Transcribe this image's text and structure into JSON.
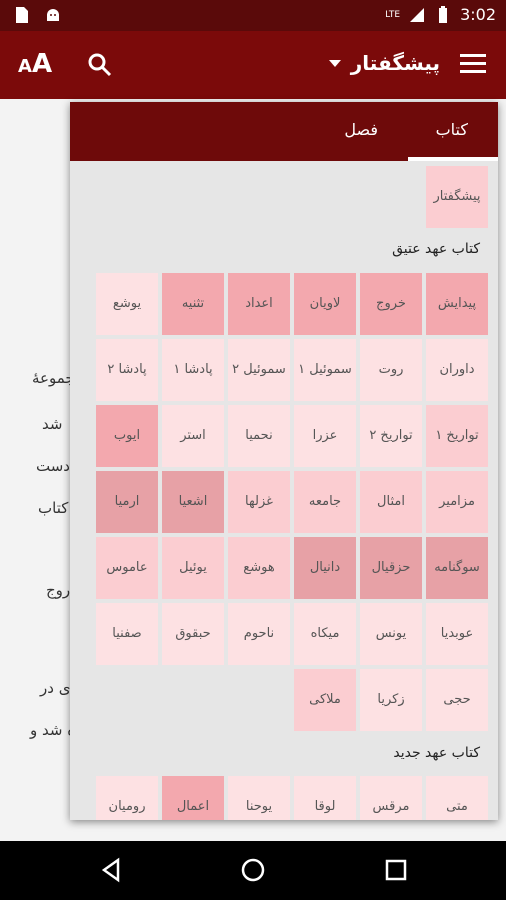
{
  "status": {
    "signal": "LTE",
    "time": "3:02"
  },
  "appbar": {
    "font_button": "A",
    "font_button_small": "A",
    "title": "پیشگفتار"
  },
  "tabs": {
    "book": "کتاب",
    "chapter": "فصل"
  },
  "intro": {
    "label": "پیشگفتار"
  },
  "sections": {
    "old": "کتاب عهد عتیق",
    "new": "کتاب عهد جدید"
  },
  "old_testament": [
    [
      {
        "label": "پیدایش",
        "shade": 2
      },
      {
        "label": "خروج",
        "shade": 2
      },
      {
        "label": "لاویان",
        "shade": 2
      },
      {
        "label": "اعداد",
        "shade": 2
      },
      {
        "label": "تثنیه",
        "shade": 2
      },
      {
        "label": "یوشع",
        "shade": 0
      }
    ],
    [
      {
        "label": "داوران",
        "shade": 0
      },
      {
        "label": "روت",
        "shade": 0
      },
      {
        "label": "سموئیل ۱",
        "shade": 0
      },
      {
        "label": "سموئیل ۲",
        "shade": 0
      },
      {
        "label": "پادشا ۱",
        "shade": 0
      },
      {
        "label": "پادشا ۲",
        "shade": 0
      }
    ],
    [
      {
        "label": "تواریخ ۱",
        "shade": 1
      },
      {
        "label": "تواریخ ۲",
        "shade": 0
      },
      {
        "label": "عزرا",
        "shade": 0
      },
      {
        "label": "نحمیا",
        "shade": 0
      },
      {
        "label": "استر",
        "shade": 0
      },
      {
        "label": "ایوب",
        "shade": 2
      }
    ],
    [
      {
        "label": "مزامیر",
        "shade": 1
      },
      {
        "label": "امثال",
        "shade": 1
      },
      {
        "label": "جامعه",
        "shade": 1
      },
      {
        "label": "غزلها",
        "shade": 1
      },
      {
        "label": "اشعیا",
        "shade": 3
      },
      {
        "label": "ارمیا",
        "shade": 3
      }
    ],
    [
      {
        "label": "سوگنامه",
        "shade": 3
      },
      {
        "label": "حزقیال",
        "shade": 3
      },
      {
        "label": "دانیال",
        "shade": 3
      },
      {
        "label": "هوشع",
        "shade": 1
      },
      {
        "label": "یوئیل",
        "shade": 1
      },
      {
        "label": "عاموس",
        "shade": 1
      }
    ],
    [
      {
        "label": "عوبدیا",
        "shade": 0
      },
      {
        "label": "یونس",
        "shade": 0
      },
      {
        "label": "میکاه",
        "shade": 0
      },
      {
        "label": "ناحوم",
        "shade": 0
      },
      {
        "label": "حبقوق",
        "shade": 0
      },
      {
        "label": "صفنیا",
        "shade": 0
      }
    ],
    [
      {
        "label": "حجی",
        "shade": 0
      },
      {
        "label": "زکریا",
        "shade": 0
      },
      {
        "label": "ملاکی",
        "shade": 1
      }
    ]
  ],
  "new_testament": [
    [
      {
        "label": "متی",
        "shade": 0
      },
      {
        "label": "مرقس",
        "shade": 0
      },
      {
        "label": "لوقا",
        "shade": 0
      },
      {
        "label": "یوحنا",
        "shade": 0
      },
      {
        "label": "اعمال",
        "shade": 2
      },
      {
        "label": "رومیان",
        "shade": 0
      }
    ]
  ],
  "background_text": [
    "مجموعهٔ",
    "شد",
    "دست",
    "کتاب",
    "روج",
    "ی در",
    "ه شد و"
  ]
}
